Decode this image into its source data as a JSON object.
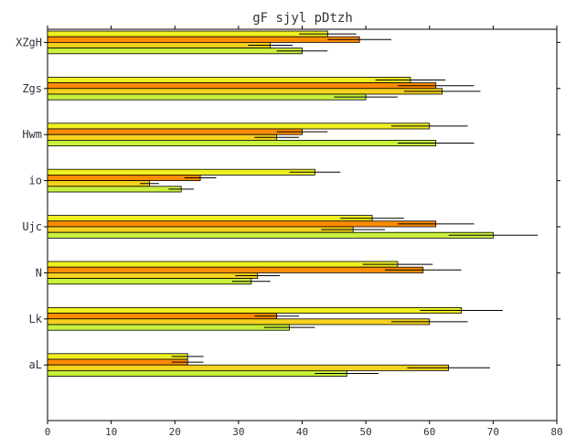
{
  "chart_data": {
    "type": "bar",
    "orientation": "horizontal",
    "title": "gF sjyl pDtzh",
    "xlabel": "",
    "ylabel": "",
    "xlim": [
      0,
      80
    ],
    "x_ticks": [
      0,
      10,
      20,
      30,
      40,
      50,
      60,
      70,
      80
    ],
    "grid": false,
    "categories": [
      "XZgH",
      "Zgs",
      "Hwm",
      "io",
      "Ujc",
      "N",
      "Lk",
      "aL"
    ],
    "series": [
      {
        "color": "#f0f020",
        "values": [
          44,
          57,
          60,
          42,
          51,
          55,
          65,
          22
        ],
        "errors": [
          4.5,
          5.5,
          6,
          4,
          5,
          5.5,
          6.5,
          2.5
        ]
      },
      {
        "color": "#ff8c00",
        "values": [
          49,
          61,
          40,
          24,
          61,
          59,
          36,
          22
        ],
        "errors": [
          5,
          6,
          4,
          2.5,
          6,
          6,
          3.5,
          2.5
        ]
      },
      {
        "color": "#f5d21e",
        "values": [
          35,
          62,
          36,
          16,
          48,
          33,
          60,
          63
        ],
        "errors": [
          3.5,
          6,
          3.5,
          1.5,
          5,
          3.5,
          6,
          6.5
        ]
      },
      {
        "color": "#c8f03c",
        "values": [
          40,
          50,
          61,
          21,
          70,
          32,
          38,
          47
        ],
        "errors": [
          4,
          5,
          6,
          2,
          7,
          3,
          4,
          5
        ]
      }
    ]
  }
}
